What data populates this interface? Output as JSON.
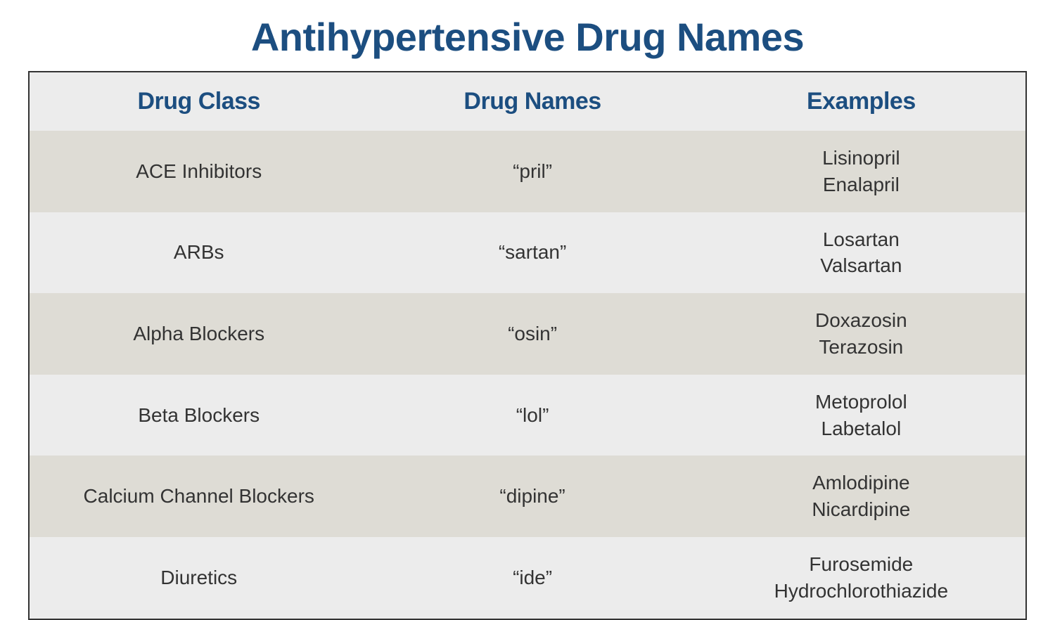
{
  "title": "Antihypertensive Drug Names",
  "table": {
    "columns": [
      "Drug Class",
      "Drug Names",
      "Examples"
    ],
    "header_color": "#1c4e80",
    "header_bg": "#ececec",
    "row_bg_odd": "#dedcd5",
    "row_bg_even": "#ececec",
    "border_color": "#333333",
    "title_fontsize": 56,
    "header_fontsize": 34,
    "cell_fontsize": 28,
    "rows": [
      {
        "class": "ACE Inhibitors",
        "suffix": "“pril”",
        "examples": "Lisinopril\nEnalapril"
      },
      {
        "class": "ARBs",
        "suffix": "“sartan”",
        "examples": "Losartan\nValsartan"
      },
      {
        "class": "Alpha Blockers",
        "suffix": "“osin”",
        "examples": "Doxazosin\nTerazosin"
      },
      {
        "class": "Beta Blockers",
        "suffix": "“lol”",
        "examples": "Metoprolol\nLabetalol"
      },
      {
        "class": "Calcium Channel Blockers",
        "suffix": "“dipine”",
        "examples": "Amlodipine\nNicardipine"
      },
      {
        "class": "Diuretics",
        "suffix": "“ide”",
        "examples": "Furosemide\nHydrochlorothiazide"
      }
    ]
  }
}
